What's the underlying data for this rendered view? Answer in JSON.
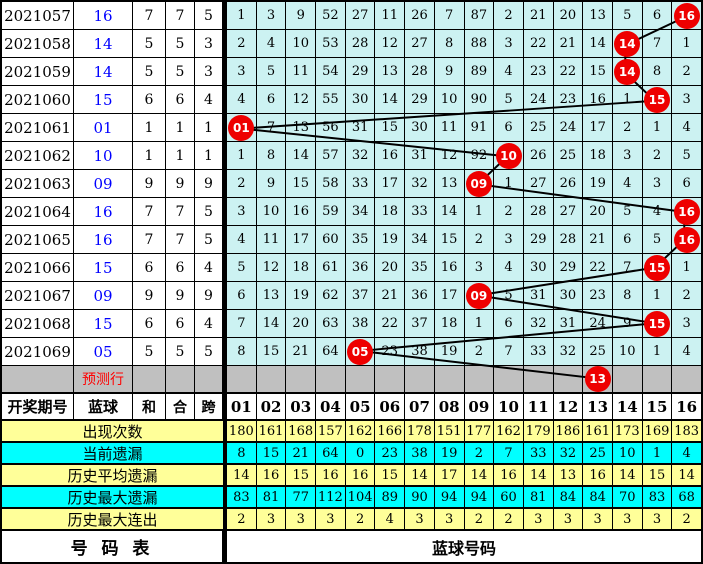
{
  "colors": {
    "grid_bg": "#CCF2F2",
    "row_yellow": "#FFFF99",
    "row_cyan": "#00FFFF",
    "row_gray": "#C0C0C0",
    "hit_red": "#EE0000",
    "blue_text": "#0000FF",
    "pred_red": "#FF0000",
    "line_black": "#000000"
  },
  "header": {
    "period": "开奖期号",
    "blue": "蓝球",
    "sum": "和",
    "combine": "合",
    "span": "跨",
    "balls": [
      "01",
      "02",
      "03",
      "04",
      "05",
      "06",
      "07",
      "08",
      "09",
      "10",
      "11",
      "12",
      "13",
      "14",
      "15",
      "16"
    ]
  },
  "draws": [
    {
      "period": "2021057",
      "blue": "16",
      "sum": "7",
      "combine": "7",
      "span": "5",
      "hit": 16,
      "cells": [
        "1",
        "3",
        "9",
        "52",
        "27",
        "11",
        "26",
        "7",
        "87",
        "2",
        "21",
        "20",
        "13",
        "5",
        "6",
        "16"
      ]
    },
    {
      "period": "2021058",
      "blue": "14",
      "sum": "5",
      "combine": "5",
      "span": "3",
      "hit": 14,
      "cells": [
        "2",
        "4",
        "10",
        "53",
        "28",
        "12",
        "27",
        "8",
        "88",
        "3",
        "22",
        "21",
        "14",
        "14",
        "7",
        "1"
      ]
    },
    {
      "period": "2021059",
      "blue": "14",
      "sum": "5",
      "combine": "5",
      "span": "3",
      "hit": 14,
      "cells": [
        "3",
        "5",
        "11",
        "54",
        "29",
        "13",
        "28",
        "9",
        "89",
        "4",
        "23",
        "22",
        "15",
        "14",
        "8",
        "2"
      ]
    },
    {
      "period": "2021060",
      "blue": "15",
      "sum": "6",
      "combine": "6",
      "span": "4",
      "hit": 15,
      "cells": [
        "4",
        "6",
        "12",
        "55",
        "30",
        "14",
        "29",
        "10",
        "90",
        "5",
        "24",
        "23",
        "16",
        "1",
        "15",
        "3"
      ]
    },
    {
      "period": "2021061",
      "blue": "01",
      "sum": "1",
      "combine": "1",
      "span": "1",
      "hit": 1,
      "cells": [
        "01",
        "7",
        "13",
        "56",
        "31",
        "15",
        "30",
        "11",
        "91",
        "6",
        "25",
        "24",
        "17",
        "2",
        "1",
        "4"
      ]
    },
    {
      "period": "2021062",
      "blue": "10",
      "sum": "1",
      "combine": "1",
      "span": "1",
      "hit": 10,
      "cells": [
        "1",
        "8",
        "14",
        "57",
        "32",
        "16",
        "31",
        "12",
        "92",
        "10",
        "26",
        "25",
        "18",
        "3",
        "2",
        "5"
      ]
    },
    {
      "period": "2021063",
      "blue": "09",
      "sum": "9",
      "combine": "9",
      "span": "9",
      "hit": 9,
      "cells": [
        "2",
        "9",
        "15",
        "58",
        "33",
        "17",
        "32",
        "13",
        "09",
        "1",
        "27",
        "26",
        "19",
        "4",
        "3",
        "6"
      ]
    },
    {
      "period": "2021064",
      "blue": "16",
      "sum": "7",
      "combine": "7",
      "span": "5",
      "hit": 16,
      "cells": [
        "3",
        "10",
        "16",
        "59",
        "34",
        "18",
        "33",
        "14",
        "1",
        "2",
        "28",
        "27",
        "20",
        "5",
        "4",
        "16"
      ]
    },
    {
      "period": "2021065",
      "blue": "16",
      "sum": "7",
      "combine": "7",
      "span": "5",
      "hit": 16,
      "cells": [
        "4",
        "11",
        "17",
        "60",
        "35",
        "19",
        "34",
        "15",
        "2",
        "3",
        "29",
        "28",
        "21",
        "6",
        "5",
        "16"
      ]
    },
    {
      "period": "2021066",
      "blue": "15",
      "sum": "6",
      "combine": "6",
      "span": "4",
      "hit": 15,
      "cells": [
        "5",
        "12",
        "18",
        "61",
        "36",
        "20",
        "35",
        "16",
        "3",
        "4",
        "30",
        "29",
        "22",
        "7",
        "15",
        "1"
      ]
    },
    {
      "period": "2021067",
      "blue": "09",
      "sum": "9",
      "combine": "9",
      "span": "9",
      "hit": 9,
      "cells": [
        "6",
        "13",
        "19",
        "62",
        "37",
        "21",
        "36",
        "17",
        "09",
        "5",
        "31",
        "30",
        "23",
        "8",
        "1",
        "2"
      ]
    },
    {
      "period": "2021068",
      "blue": "15",
      "sum": "6",
      "combine": "6",
      "span": "4",
      "hit": 15,
      "cells": [
        "7",
        "14",
        "20",
        "63",
        "38",
        "22",
        "37",
        "18",
        "1",
        "6",
        "32",
        "31",
        "24",
        "9",
        "15",
        "3"
      ]
    },
    {
      "period": "2021069",
      "blue": "05",
      "sum": "5",
      "combine": "5",
      "span": "5",
      "hit": 5,
      "cells": [
        "8",
        "15",
        "21",
        "64",
        "05",
        "23",
        "38",
        "19",
        "2",
        "7",
        "33",
        "32",
        "25",
        "10",
        "1",
        "4"
      ]
    }
  ],
  "prediction": {
    "label": "预测行",
    "hit": 13,
    "hit_text": "13"
  },
  "stats": [
    {
      "label": "出现次数",
      "bg": "yellow",
      "values": [
        "180",
        "161",
        "168",
        "157",
        "162",
        "166",
        "178",
        "151",
        "177",
        "162",
        "179",
        "186",
        "161",
        "173",
        "169",
        "183"
      ]
    },
    {
      "label": "当前遗漏",
      "bg": "cyan",
      "values": [
        "8",
        "15",
        "21",
        "64",
        "0",
        "23",
        "38",
        "19",
        "2",
        "7",
        "33",
        "32",
        "25",
        "10",
        "1",
        "4"
      ]
    },
    {
      "label": "历史平均遗漏",
      "bg": "yellow",
      "values": [
        "14",
        "16",
        "15",
        "16",
        "16",
        "15",
        "14",
        "17",
        "14",
        "16",
        "14",
        "13",
        "16",
        "14",
        "15",
        "14"
      ]
    },
    {
      "label": "历史最大遗漏",
      "bg": "cyan",
      "values": [
        "83",
        "81",
        "77",
        "112",
        "104",
        "89",
        "90",
        "94",
        "94",
        "60",
        "81",
        "84",
        "84",
        "70",
        "83",
        "68"
      ]
    },
    {
      "label": "历史最大连出",
      "bg": "yellow",
      "values": [
        "2",
        "3",
        "3",
        "3",
        "2",
        "4",
        "3",
        "3",
        "2",
        "2",
        "3",
        "3",
        "3",
        "3",
        "3",
        "2"
      ]
    }
  ],
  "footer": {
    "left": "号 码 表",
    "right": "蓝球号码"
  }
}
